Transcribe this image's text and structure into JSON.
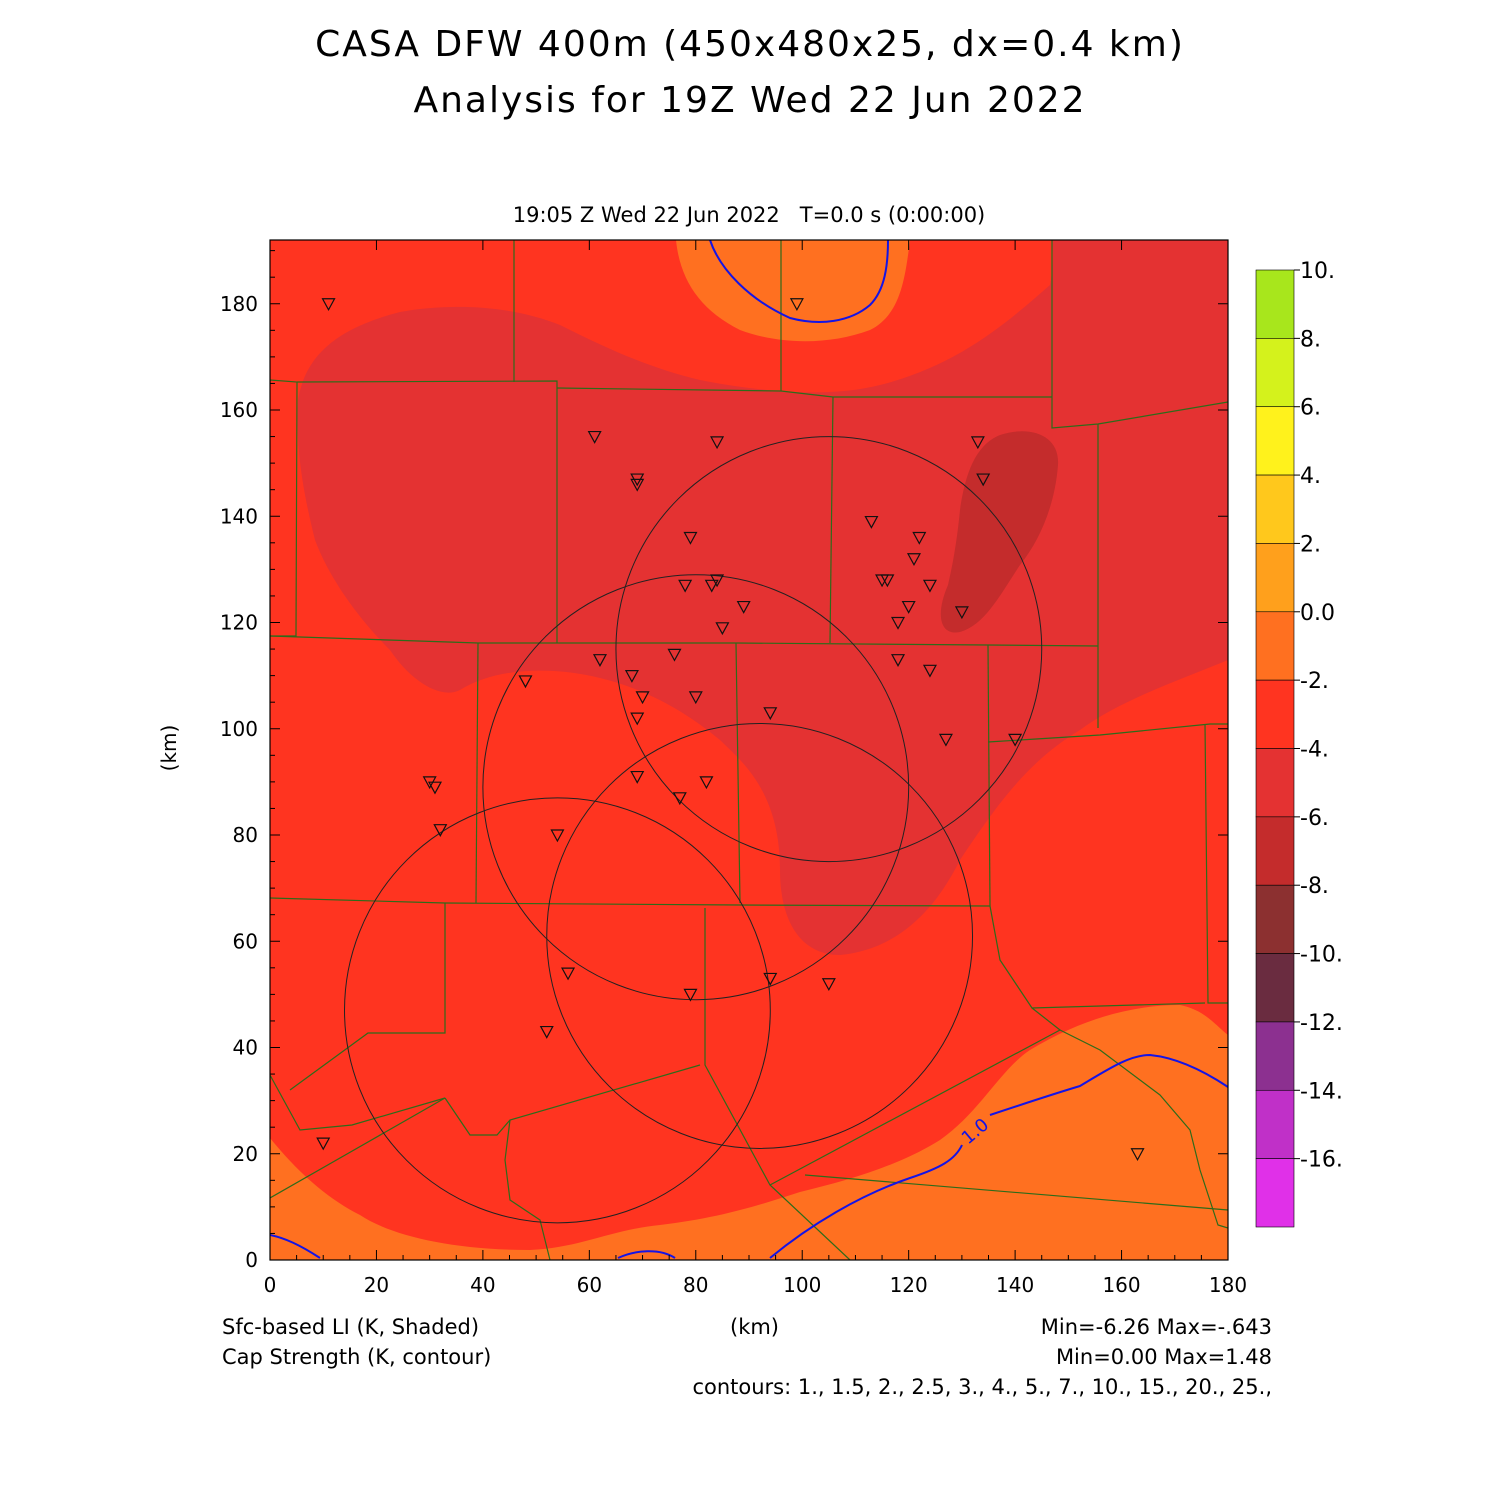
{
  "header": {
    "title_line1": "CASA DFW 400m (450x480x25, dx=0.4 km)",
    "title_line2": "Analysis for 19Z Wed 22 Jun 2022",
    "valid_time": "19:05 Z Wed 22 Jun 2022   T=0.0 s (0:00:00)"
  },
  "footer": {
    "shaded_field": "Sfc-based LI (K, Shaded)",
    "contour_field": "Cap Strength (K, contour)",
    "x_unit": "(km)",
    "shaded_range": "Min=-6.26 Max=-.643",
    "contour_range": "Min=0.00 Max=1.48",
    "contour_levels": "contours: 1., 1.5, 2., 2.5, 3., 4., 5., 7., 10., 15., 20., 25.,"
  },
  "map": {
    "x_label": "(km)",
    "y_label": "(km)",
    "x_range": [
      0,
      180
    ],
    "y_range": [
      0,
      192
    ],
    "x_ticks": [
      "0",
      "20",
      "40",
      "60",
      "80",
      "100",
      "120",
      "140",
      "160",
      "180"
    ],
    "y_ticks": [
      "0",
      "20",
      "40",
      "60",
      "80",
      "100",
      "120",
      "140",
      "160",
      "180"
    ],
    "contour_label": "1.0",
    "radars_km": [
      {
        "cx": 105,
        "cy": 115,
        "r": 40
      },
      {
        "cx": 80,
        "cy": 89,
        "r": 40
      },
      {
        "cx": 92,
        "cy": 61,
        "r": 40
      },
      {
        "cx": 54,
        "cy": 47,
        "r": 40
      }
    ],
    "stations_km": [
      [
        11,
        180
      ],
      [
        99,
        180
      ],
      [
        61,
        155
      ],
      [
        84,
        154
      ],
      [
        69,
        147
      ],
      [
        69,
        146
      ],
      [
        133,
        154
      ],
      [
        134,
        147
      ],
      [
        113,
        139
      ],
      [
        79,
        136
      ],
      [
        122,
        136
      ],
      [
        121,
        132
      ],
      [
        115,
        128
      ],
      [
        116,
        128
      ],
      [
        84,
        128
      ],
      [
        83,
        127
      ],
      [
        78,
        127
      ],
      [
        124,
        127
      ],
      [
        89,
        123
      ],
      [
        120,
        123
      ],
      [
        130,
        122
      ],
      [
        118,
        120
      ],
      [
        85,
        119
      ],
      [
        76,
        114
      ],
      [
        62,
        113
      ],
      [
        118,
        113
      ],
      [
        124,
        111
      ],
      [
        68,
        110
      ],
      [
        48,
        109
      ],
      [
        70,
        106
      ],
      [
        80,
        106
      ],
      [
        69,
        102
      ],
      [
        94,
        103
      ],
      [
        127,
        98
      ],
      [
        140,
        98
      ],
      [
        30,
        90
      ],
      [
        31,
        89
      ],
      [
        69,
        91
      ],
      [
        82,
        90
      ],
      [
        77,
        87
      ],
      [
        32,
        81
      ],
      [
        54,
        80
      ],
      [
        56,
        54
      ],
      [
        94,
        53
      ],
      [
        105,
        52
      ],
      [
        79,
        50
      ],
      [
        52,
        43
      ],
      [
        10,
        22
      ],
      [
        163,
        20
      ]
    ]
  },
  "colorbar": {
    "labels": [
      "10.",
      "8.",
      "6.",
      "4.",
      "2.",
      "0.0",
      "-2.",
      "-4.",
      "-6.",
      "-8.",
      "-10.",
      "-12.",
      "-14.",
      "-16."
    ],
    "colors": [
      "#a8e61c",
      "#d4f21c",
      "#fff21c",
      "#ffc81c",
      "#ffa01c",
      "#ff7020",
      "#ff3420",
      "#e43232",
      "#c42c2c",
      "#8c3030",
      "#6a2c40",
      "#8c3090",
      "#c030c8",
      "#e030e8"
    ]
  }
}
